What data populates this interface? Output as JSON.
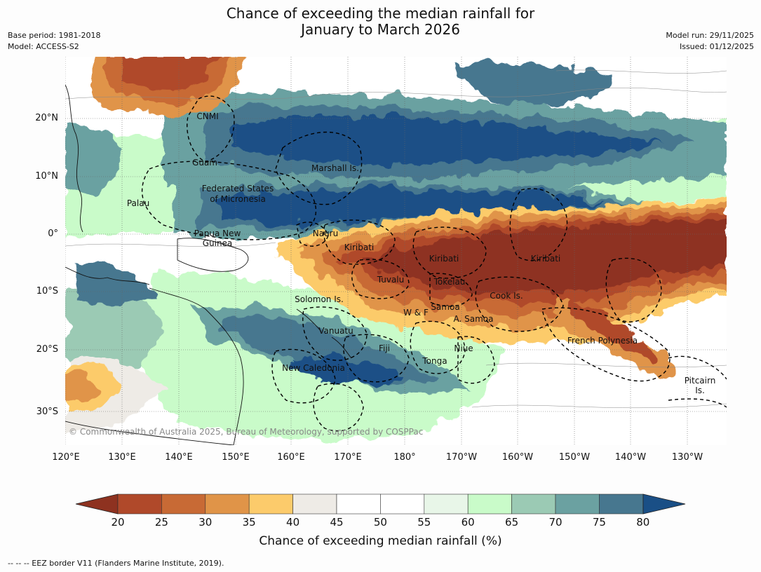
{
  "title_line1": "Chance of exceeding the median rainfall for",
  "title_line2": "January to March 2026",
  "base_period": "Base period: 1981-2018",
  "model": "Model: ACCESS-S2",
  "model_run": "Model run: 29/11/2025",
  "issued": "Issued: 01/12/2025",
  "copyright": "© Commonwealth of Australia 2025, Bureau of Meteorology, supported by COSPPac",
  "lat_labels": [
    "20°N",
    "10°N",
    "0°",
    "10°S",
    "20°S",
    "30°S"
  ],
  "lon_labels": [
    "120°E",
    "130°E",
    "140°E",
    "150°E",
    "160°E",
    "170°E",
    "180°",
    "170°W",
    "160°W",
    "150°W",
    "140°W",
    "130°W"
  ],
  "regions": {
    "cnmi": "CNMI",
    "guam": "Guam",
    "marshall": "Marshall Is.",
    "fsm1": "Federated States",
    "fsm2": "of Micronesia",
    "palau": "Palau",
    "png1": "Papua New",
    "png2": "Guinea",
    "nauru": "Nauru",
    "kiribati_w": "Kiribati",
    "kiribati_c": "Kiribati",
    "kiribati_e": "Kiribati",
    "tuvalu": "Tuvalu",
    "tokelau": "Tokelau",
    "cook": "Cook Is.",
    "solomon": "Solomon Is.",
    "samoa": "Samoa",
    "wf": "W & F",
    "asamoa": "A. Samoa",
    "vanuatu": "Vanuatu",
    "fiji": "Fiji",
    "niue": "Niue",
    "tonga": "Tonga",
    "frenchpoly": "French Polynesia",
    "newcal": "New Caledonia",
    "pitcairn1": "Pitcairn",
    "pitcairn2": "Is."
  },
  "colorbar": {
    "title": "Chance of exceeding median rainfall (%)",
    "ticks": [
      "20",
      "25",
      "30",
      "35",
      "40",
      "45",
      "50",
      "55",
      "60",
      "65",
      "70",
      "75",
      "80"
    ],
    "colors": [
      "#8e3220",
      "#b0492a",
      "#c86a35",
      "#e09448",
      "#fccb6b",
      "#eeebe6",
      "#ffffff",
      "#ffffff",
      "#e8f6e8",
      "#c9fbc9",
      "#9bcab4",
      "#6ba1a1",
      "#47778f",
      "#1a4f86"
    ]
  },
  "footer": "--  --  -- EEZ border V11 (Flanders Marine Institute, 2019)."
}
